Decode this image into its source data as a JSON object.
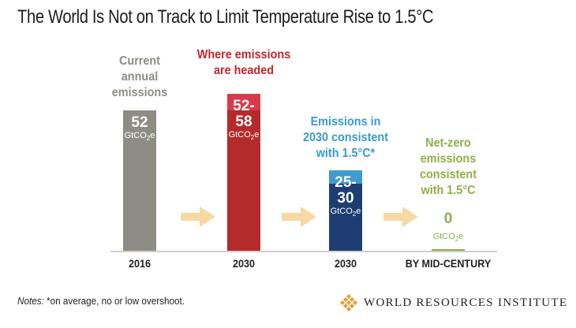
{
  "title": "The World Is Not on Track to Limit Temperature Rise to 1.5°C",
  "chart_data": {
    "type": "bar",
    "categories": [
      "2016",
      "2030",
      "2030",
      "BY MID-CENTURY"
    ],
    "unit": "GtCO2e",
    "bars": [
      {
        "category": "2016",
        "label_lines": [
          "Current",
          "annual",
          "emissions"
        ],
        "value": 52,
        "value_text": [
          "52"
        ],
        "color": "#8d8d86",
        "label_color": "#8d8d86"
      },
      {
        "category": "2030",
        "label_lines": [
          "Where emissions",
          "are headed"
        ],
        "range": [
          52,
          58
        ],
        "value_text": [
          "52-",
          "58"
        ],
        "color": "#b52a2a",
        "top_color": "#d83a4c",
        "label_color": "#c0272d"
      },
      {
        "category": "2030",
        "label_lines": [
          "Emissions in",
          "2030 consistent",
          "with 1.5°C*"
        ],
        "range": [
          25,
          30
        ],
        "value_text": [
          "25-",
          "30"
        ],
        "color": "#1d3d73",
        "top_color": "#3f9cd1",
        "label_color": "#3a9ad0"
      },
      {
        "category": "BY MID-CENTURY",
        "label_lines": [
          "Net-zero",
          "emissions",
          "consistent",
          "with 1.5°C"
        ],
        "value": 0,
        "value_text": [
          "0"
        ],
        "color": "#8fb04a",
        "label_color": "#8fb04a"
      }
    ],
    "arrow_color": "#f7d9a3"
  },
  "notes": {
    "label": "Notes:",
    "text": "*on average, no or low overshoot."
  },
  "logo": {
    "text": "WORLD RESOURCES INSTITUTE",
    "color": "#e1a339"
  }
}
